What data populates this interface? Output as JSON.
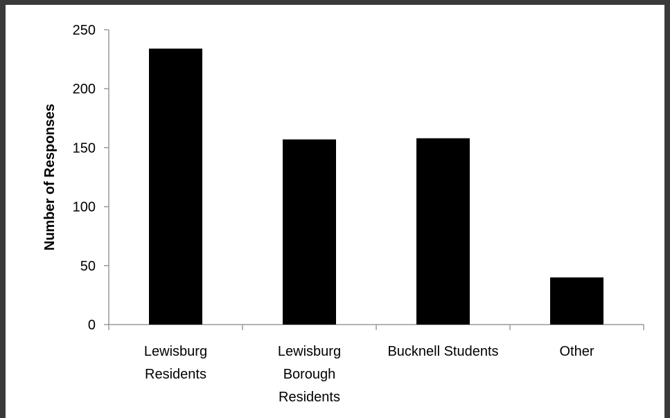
{
  "chart_data": {
    "type": "bar",
    "title": "",
    "xlabel": "",
    "ylabel": "Number of Responses",
    "categories": [
      [
        "Lewisburg",
        "Residents"
      ],
      [
        "Lewisburg",
        "Borough",
        "Residents"
      ],
      [
        "Bucknell Students"
      ],
      [
        "Other"
      ]
    ],
    "values": [
      234,
      157,
      158,
      40
    ],
    "ylim": [
      0,
      250
    ],
    "yticks": [
      0,
      50,
      100,
      150,
      200,
      250
    ],
    "grid": false,
    "legend": "none",
    "bar_color": "#000000",
    "axis_color": "#9a9a9a"
  }
}
